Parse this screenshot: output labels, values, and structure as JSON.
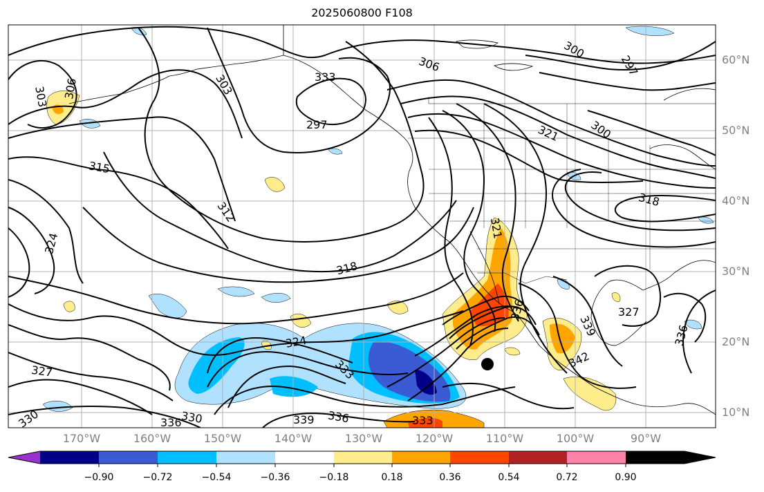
{
  "title": "2025060800 F108",
  "latitude_labels": [
    "60°N",
    "50°N",
    "40°N",
    "30°N",
    "20°N",
    "10°N"
  ],
  "longitude_labels": [
    "170°W",
    "160°W",
    "150°W",
    "140°W",
    "130°W",
    "120°W",
    "110°W",
    "100°W",
    "90°W"
  ],
  "contour_labels": [
    "303",
    "306",
    "303",
    "297",
    "306",
    "300",
    "297",
    "315",
    "312",
    "321",
    "300",
    "318",
    "321",
    "324",
    "336",
    "318",
    "327",
    "339",
    "336",
    "324",
    "342",
    "333",
    "327",
    "330",
    "330",
    "336",
    "339",
    "336",
    "333",
    "333"
  ],
  "colorbar": {
    "tick_labels": [
      "−0.90",
      "−0.72",
      "−0.54",
      "−0.36",
      "−0.18",
      "0.18",
      "0.36",
      "0.54",
      "0.72",
      "0.90"
    ],
    "colors": [
      "#9932cc",
      "#000088",
      "#3b5bd4",
      "#00bfff",
      "#b0e2ff",
      "#ffffff",
      "#ffec8b",
      "#ffa500",
      "#ff4500",
      "#b22222",
      "#ff82ab"
    ]
  }
}
